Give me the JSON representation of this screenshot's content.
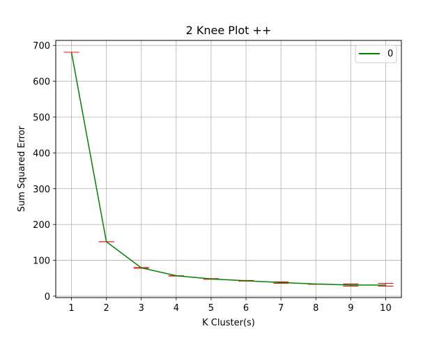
{
  "chart_data": {
    "type": "line",
    "title": "2 Knee Plot ++",
    "xlabel": "K Cluster(s)",
    "ylabel": "Sum Squared Error",
    "x": [
      1,
      2,
      3,
      4,
      5,
      6,
      7,
      8,
      9,
      10
    ],
    "x_ticks": [
      "1",
      "2",
      "3",
      "4",
      "5",
      "6",
      "7",
      "8",
      "9",
      "10"
    ],
    "y_ticks": [
      "0",
      "100",
      "200",
      "300",
      "400",
      "500",
      "600",
      "700"
    ],
    "xlim": [
      0.55,
      10.45
    ],
    "ylim": [
      -4,
      714
    ],
    "grid": true,
    "legend_position": "top-right",
    "series": [
      {
        "name": "0",
        "color": "#008000",
        "values": [
          681,
          152,
          79,
          57,
          48,
          43,
          38,
          34,
          31,
          31
        ]
      }
    ],
    "error_bars": {
      "color": "#ff0000",
      "lower": [
        681,
        152,
        78,
        56,
        47,
        42,
        36,
        33,
        28,
        28
      ],
      "upper": [
        681,
        152,
        80,
        57,
        49,
        44,
        40,
        34,
        34,
        36
      ]
    }
  }
}
